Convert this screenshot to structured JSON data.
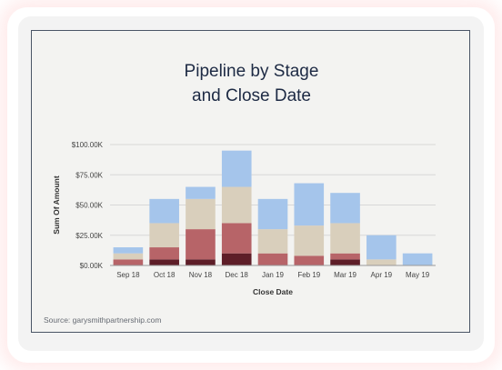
{
  "page": {
    "title_line1": "Pipeline by Stage",
    "title_line2": "and Close Date"
  },
  "source": "Source: garysmithpartnership.com",
  "chart_data": {
    "type": "bar",
    "stacked": true,
    "title": "Pipeline by Stage and Close Date",
    "xlabel": "Close Date",
    "ylabel": "Sum Of Amount",
    "ylim": [
      0,
      100000
    ],
    "yticks": [
      0,
      25000,
      50000,
      75000,
      100000
    ],
    "ytick_labels": [
      "$0.00K",
      "$25.00K",
      "$50.00K",
      "$75.00K",
      "$100.00K"
    ],
    "grid": true,
    "categories": [
      "Sep 18",
      "Oct 18",
      "Nov 18",
      "Dec 18",
      "Jan 19",
      "Feb 19",
      "Mar 19",
      "Apr 19",
      "May 19"
    ],
    "series": [
      {
        "color": "#5e1e28",
        "values": [
          0,
          5000,
          5000,
          10000,
          0,
          0,
          5000,
          0,
          0
        ]
      },
      {
        "color": "#b76468",
        "values": [
          5000,
          10000,
          25000,
          25000,
          10000,
          8000,
          5000,
          0,
          0
        ]
      },
      {
        "color": "#d9cfbc",
        "values": [
          5000,
          20000,
          25000,
          30000,
          20000,
          25000,
          25000,
          5000,
          0
        ]
      },
      {
        "color": "#a5c5eb",
        "values": [
          5000,
          20000,
          10000,
          30000,
          25000,
          35000,
          25000,
          20000,
          10000
        ]
      }
    ]
  }
}
